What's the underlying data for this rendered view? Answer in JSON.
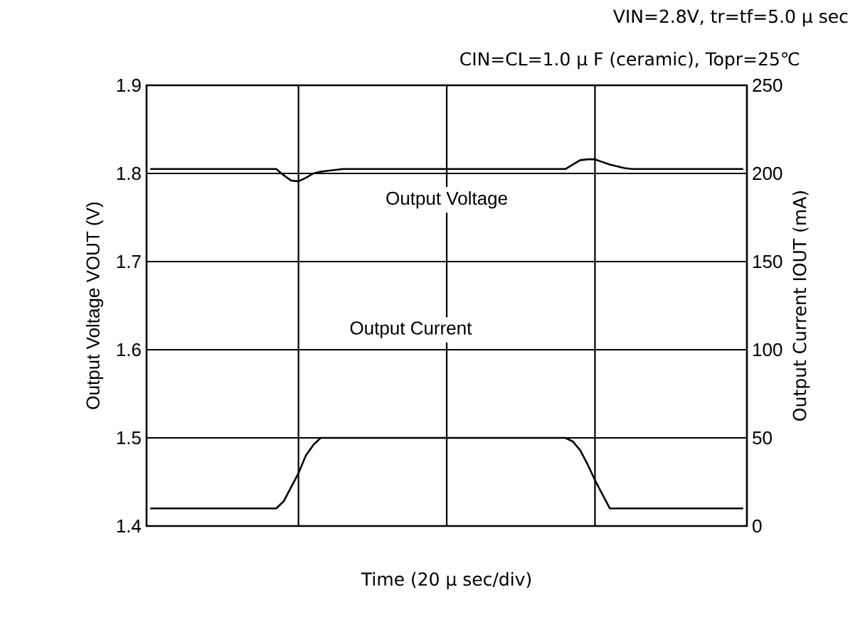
{
  "chart_data": {
    "type": "line",
    "title": "VIN=2.8V, tr=tf=5.0 μ sec",
    "subtitle": "CIN=CL=1.0 μ F (ceramic), Topr=25℃",
    "xlabel": "Time (20 μ sec/div)",
    "ylabel": "Output Voltage VOUT (V)",
    "y2label": "Output Current IOUT (mA)",
    "categories": [
      null,
      null,
      null,
      null,
      null,
      null,
      null,
      null,
      null,
      null,
      null,
      null,
      null,
      null,
      null,
      null,
      null,
      null,
      null,
      null,
      null,
      null,
      null,
      null,
      null,
      null,
      null,
      null,
      null,
      null,
      null,
      null,
      null,
      null,
      null,
      null,
      null,
      null,
      null,
      null,
      null,
      null,
      null,
      null,
      null,
      null,
      null,
      null,
      null,
      null,
      null,
      null,
      null,
      null,
      null,
      null,
      null,
      null,
      null,
      null,
      null,
      null,
      null,
      null,
      null,
      null,
      null,
      null,
      null,
      null,
      null,
      null,
      null,
      null,
      null,
      null,
      null,
      null,
      null,
      null,
      null
    ],
    "ylim": [
      1.4,
      1.9
    ],
    "yticks": [
      1.4,
      1.5,
      1.6,
      1.7,
      1.8,
      1.9
    ],
    "y2lim": [
      0,
      250
    ],
    "y2ticks": [
      0,
      50,
      100,
      150,
      200,
      250
    ],
    "annotations": [
      "Output Current"
    ],
    "grid": true,
    "legend": false,
    "marker": "none",
    "line_style": "solid",
    "series": [
      {
        "name": "Output Voltage",
        "color": "#000000",
        "values": [
          1.805,
          1.805,
          1.805,
          1.805,
          1.805,
          1.805,
          1.805,
          1.805,
          1.805,
          1.805,
          1.805,
          1.805,
          1.805,
          1.805,
          1.805,
          1.805,
          1.805,
          1.805,
          1.798,
          1.792,
          1.791,
          1.795,
          1.8,
          1.802,
          1.803,
          1.804,
          1.805,
          1.805,
          1.805,
          1.805,
          1.805,
          1.805,
          1.805,
          1.805,
          1.805,
          1.805,
          1.805,
          1.805,
          1.805,
          1.805,
          1.805,
          1.805,
          1.805,
          1.805,
          1.805,
          1.805,
          1.805,
          1.805,
          1.805,
          1.805,
          1.805,
          1.805,
          1.805,
          1.805,
          1.805,
          1.805,
          1.805,
          1.81,
          1.815,
          1.816,
          1.816,
          1.813,
          1.81,
          1.808,
          1.806,
          1.805,
          1.805,
          1.805,
          1.805,
          1.805,
          1.805,
          1.805,
          1.805,
          1.805,
          1.805,
          1.805,
          1.805,
          1.805,
          1.805,
          1.805,
          1.805
        ]
      },
      {
        "color": "#000000",
        "axis": "y2",
        "values": [
          10,
          10,
          10,
          10,
          10,
          10,
          10,
          10,
          10,
          10,
          10,
          10,
          10,
          10,
          10,
          10,
          10,
          10,
          14,
          22,
          30,
          40,
          46,
          50,
          50,
          50,
          50,
          50,
          50,
          50,
          50,
          50,
          50,
          50,
          50,
          50,
          50,
          50,
          50,
          50,
          50,
          50,
          50,
          50,
          50,
          50,
          50,
          50,
          50,
          50,
          50,
          50,
          50,
          50,
          50,
          50,
          50,
          48,
          43,
          35,
          26,
          18,
          10,
          10,
          10,
          10,
          10,
          10,
          10,
          10,
          10,
          10,
          10,
          10,
          10,
          10,
          10,
          10,
          10,
          10,
          10
        ]
      }
    ]
  }
}
